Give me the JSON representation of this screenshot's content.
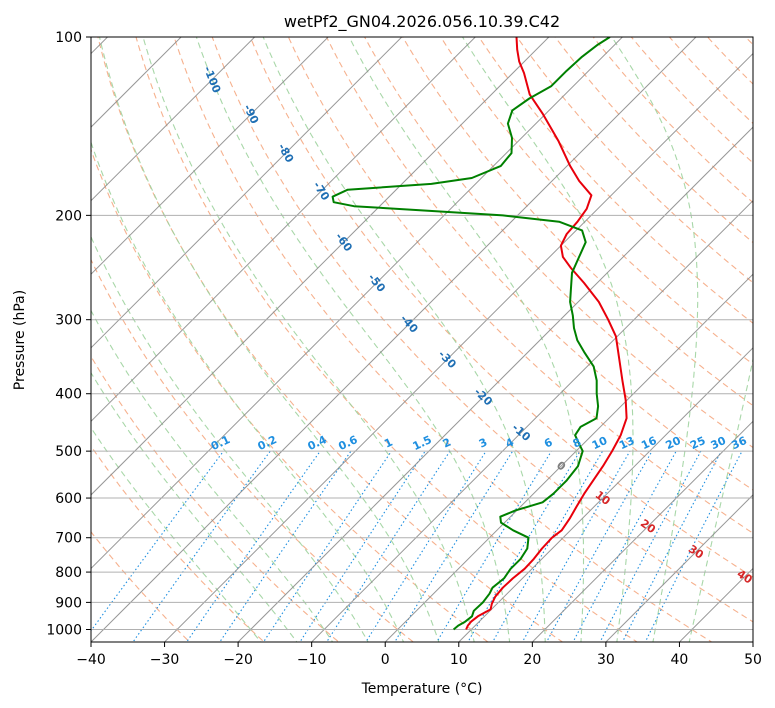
{
  "chart_data": {
    "type": "line",
    "title": "wetPf2_GN04.2026.056.10.39.C42",
    "xlabel": "Temperature (°C)",
    "ylabel": "Pressure (hPa)",
    "xlim": [
      -40,
      50
    ],
    "ylim": [
      1050,
      100
    ],
    "x_ticks": [
      -40,
      -30,
      -20,
      -10,
      0,
      10,
      20,
      30,
      40,
      50
    ],
    "x_tick_labels": [
      "−40",
      "−30",
      "−20",
      "−10",
      "0",
      "10",
      "20",
      "30",
      "40",
      "50"
    ],
    "y_ticks": [
      100,
      200,
      300,
      400,
      500,
      600,
      700,
      800,
      900,
      1000
    ],
    "y_tick_labels": [
      "100",
      "200",
      "300",
      "400",
      "500",
      "600",
      "700",
      "800",
      "900",
      "1000"
    ],
    "colors": {
      "temperature": "#e8000b",
      "dewpoint": "#008000",
      "dry_adiabat": "#f5a37a",
      "moist_adiabat": "#9fd39f",
      "mixing_ratio": "#1e8fe0",
      "isotherm": "#8c8c8c",
      "grid": "#b0b0b0",
      "cold_label": "#1f6fb4",
      "warm_label": "#d62728",
      "zero_label": "#7f7f7f"
    },
    "series": [
      {
        "name": "Temperature",
        "color": "#e8000b",
        "points": [
          {
            "p": 1000,
            "t": 9.3
          },
          {
            "p": 985,
            "t": 9.0
          },
          {
            "p": 970,
            "t": 8.9
          },
          {
            "p": 950,
            "t": 9.1
          },
          {
            "p": 925,
            "t": 9.9
          },
          {
            "p": 905,
            "t": 9.3
          },
          {
            "p": 880,
            "t": 8.8
          },
          {
            "p": 850,
            "t": 8.6
          },
          {
            "p": 820,
            "t": 8.7
          },
          {
            "p": 790,
            "t": 9.0
          },
          {
            "p": 760,
            "t": 8.9
          },
          {
            "p": 730,
            "t": 8.6
          },
          {
            "p": 700,
            "t": 8.5
          },
          {
            "p": 680,
            "t": 8.8
          },
          {
            "p": 650,
            "t": 8.3
          },
          {
            "p": 620,
            "t": 7.6
          },
          {
            "p": 590,
            "t": 6.9
          },
          {
            "p": 560,
            "t": 6.3
          },
          {
            "p": 530,
            "t": 5.7
          },
          {
            "p": 500,
            "t": 4.9
          },
          {
            "p": 470,
            "t": 3.9
          },
          {
            "p": 440,
            "t": 2.4
          },
          {
            "p": 410,
            "t": -0.2
          },
          {
            "p": 380,
            "t": -3.3
          },
          {
            "p": 350,
            "t": -6.6
          },
          {
            "p": 320,
            "t": -10.2
          },
          {
            "p": 300,
            "t": -13.5
          },
          {
            "p": 280,
            "t": -17.2
          },
          {
            "p": 260,
            "t": -21.8
          },
          {
            "p": 245,
            "t": -25.7
          },
          {
            "p": 235,
            "t": -28.2
          },
          {
            "p": 225,
            "t": -30.0
          },
          {
            "p": 215,
            "t": -30.8
          },
          {
            "p": 205,
            "t": -31.0
          },
          {
            "p": 195,
            "t": -31.5
          },
          {
            "p": 185,
            "t": -32.7
          },
          {
            "p": 175,
            "t": -36.3
          },
          {
            "p": 165,
            "t": -39.6
          },
          {
            "p": 150,
            "t": -44.5
          },
          {
            "p": 135,
            "t": -50.3
          },
          {
            "p": 125,
            "t": -54.8
          },
          {
            "p": 115,
            "t": -58.5
          },
          {
            "p": 110,
            "t": -60.7
          },
          {
            "p": 105,
            "t": -62.6
          },
          {
            "p": 100,
            "t": -64.4
          }
        ]
      },
      {
        "name": "Dewpoint",
        "color": "#008000",
        "points": [
          {
            "p": 1000,
            "t": 7.6
          },
          {
            "p": 985,
            "t": 7.7
          },
          {
            "p": 970,
            "t": 8.1
          },
          {
            "p": 950,
            "t": 8.3
          },
          {
            "p": 930,
            "t": 7.8
          },
          {
            "p": 900,
            "t": 7.9
          },
          {
            "p": 870,
            "t": 7.6
          },
          {
            "p": 850,
            "t": 7.2
          },
          {
            "p": 820,
            "t": 7.5
          },
          {
            "p": 790,
            "t": 7.1
          },
          {
            "p": 760,
            "t": 7.1
          },
          {
            "p": 730,
            "t": 6.6
          },
          {
            "p": 700,
            "t": 5.3
          },
          {
            "p": 680,
            "t": 2.2
          },
          {
            "p": 660,
            "t": -0.5
          },
          {
            "p": 645,
            "t": -1.4
          },
          {
            "p": 630,
            "t": -0.2
          },
          {
            "p": 610,
            "t": 2.4
          },
          {
            "p": 590,
            "t": 2.7
          },
          {
            "p": 560,
            "t": 2.7
          },
          {
            "p": 530,
            "t": 2.3
          },
          {
            "p": 500,
            "t": 0.9
          },
          {
            "p": 485,
            "t": -0.7
          },
          {
            "p": 470,
            "t": -2.3
          },
          {
            "p": 455,
            "t": -2.7
          },
          {
            "p": 440,
            "t": -1.7
          },
          {
            "p": 420,
            "t": -3.1
          },
          {
            "p": 400,
            "t": -5.0
          },
          {
            "p": 380,
            "t": -6.8
          },
          {
            "p": 360,
            "t": -9.1
          },
          {
            "p": 340,
            "t": -12.4
          },
          {
            "p": 325,
            "t": -14.9
          },
          {
            "p": 310,
            "t": -17.0
          },
          {
            "p": 295,
            "t": -18.9
          },
          {
            "p": 280,
            "t": -21.1
          },
          {
            "p": 265,
            "t": -22.9
          },
          {
            "p": 250,
            "t": -24.8
          },
          {
            "p": 235,
            "t": -26.0
          },
          {
            "p": 222,
            "t": -27.1
          },
          {
            "p": 212,
            "t": -29.2
          },
          {
            "p": 205,
            "t": -33.5
          },
          {
            "p": 200,
            "t": -42.0
          },
          {
            "p": 196,
            "t": -54.0
          },
          {
            "p": 193,
            "t": -63.5
          },
          {
            "p": 190,
            "t": -66.8
          },
          {
            "p": 186,
            "t": -67.7
          },
          {
            "p": 181,
            "t": -66.6
          },
          {
            "p": 177,
            "t": -56.0
          },
          {
            "p": 173,
            "t": -51.3
          },
          {
            "p": 165,
            "t": -49.0
          },
          {
            "p": 157,
            "t": -49.3
          },
          {
            "p": 148,
            "t": -51.3
          },
          {
            "p": 140,
            "t": -53.8
          },
          {
            "p": 133,
            "t": -55.0
          },
          {
            "p": 127,
            "t": -54.3
          },
          {
            "p": 121,
            "t": -53.0
          },
          {
            "p": 114,
            "t": -53.0
          },
          {
            "p": 108,
            "t": -52.8
          },
          {
            "p": 103,
            "t": -52.3
          },
          {
            "p": 100,
            "t": -51.7
          }
        ]
      }
    ],
    "dry_adiabat_labels": [
      {
        "text": "-100",
        "t": -100,
        "p": 118
      },
      {
        "text": "-90",
        "t": -90,
        "p": 135
      },
      {
        "text": "-80",
        "t": -80,
        "p": 157
      },
      {
        "text": "-70",
        "t": -70,
        "p": 182
      },
      {
        "text": "-60",
        "t": -60,
        "p": 222
      },
      {
        "text": "-50",
        "t": -50,
        "p": 260
      },
      {
        "text": "-40",
        "t": -40,
        "p": 305
      },
      {
        "text": "-30",
        "t": -30,
        "p": 350
      },
      {
        "text": "-20",
        "t": -20,
        "p": 405
      },
      {
        "text": "-10",
        "t": -10,
        "p": 465
      },
      {
        "text": "0",
        "t": 0,
        "p": 530
      },
      {
        "text": "10",
        "t": 10,
        "p": 600
      },
      {
        "text": "20",
        "t": 20,
        "p": 670
      },
      {
        "text": "30",
        "t": 30,
        "p": 740
      },
      {
        "text": "40",
        "t": 40,
        "p": 815
      }
    ],
    "mixing_ratio_labels": [
      "0.1",
      "0.2",
      "0.4",
      "0.6",
      "1",
      "1.5",
      "2",
      "3",
      "4",
      "6",
      "8",
      "10",
      "13",
      "16",
      "20",
      "25",
      "30",
      "36"
    ],
    "mixing_ratio_values": [
      0.1,
      0.2,
      0.4,
      0.6,
      1,
      1.5,
      2,
      3,
      4,
      6,
      8,
      10,
      13,
      16,
      20,
      25,
      30,
      36
    ]
  }
}
